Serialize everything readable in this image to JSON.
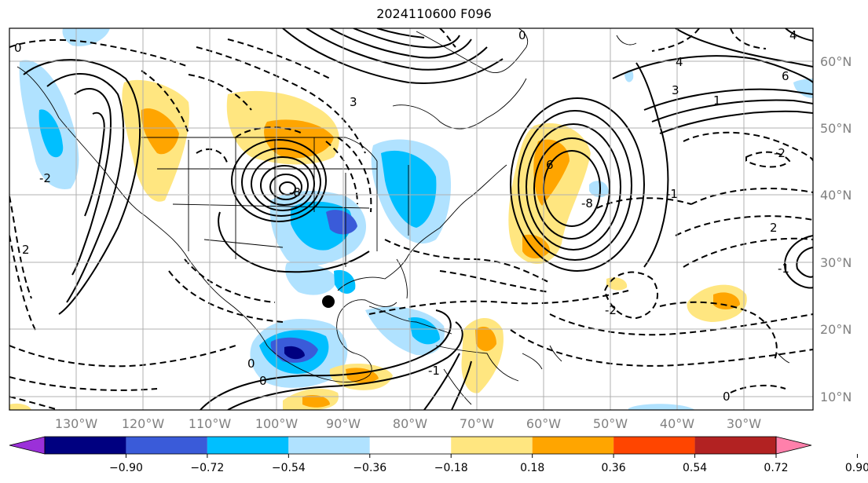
{
  "title": "2024110600 F096",
  "map": {
    "type": "weather-map",
    "grid": true,
    "lon_labels": [
      "130°W",
      "120°W",
      "110°W",
      "100°W",
      "90°W",
      "80°W",
      "70°W",
      "60°W",
      "50°W",
      "40°W",
      "30°W"
    ],
    "lon_values": [
      -130,
      -120,
      -110,
      -100,
      -90,
      -80,
      -70,
      -60,
      -50,
      -40,
      -30
    ],
    "lat_labels": [
      "60°N",
      "50°N",
      "40°N",
      "30°N",
      "20°N",
      "10°N"
    ],
    "lat_values": [
      60,
      50,
      40,
      30,
      20,
      10
    ],
    "lon_range": [
      -138,
      -18
    ],
    "lat_range": [
      8,
      65
    ],
    "contour_labels": [
      "0",
      "0",
      "2",
      "2",
      "3",
      "3",
      "4",
      "4",
      "6",
      "-8",
      "-8",
      "1",
      "-1",
      "-2",
      "-2",
      "-1",
      "-1",
      "0",
      "0",
      "0",
      "-2",
      "6"
    ]
  },
  "colorbar": {
    "ticks": [
      "−0.90",
      "−0.72",
      "−0.54",
      "−0.36",
      "−0.18",
      "0.18",
      "0.36",
      "0.54",
      "0.72",
      "0.90"
    ],
    "colors": [
      "#9b30d9",
      "#000080",
      "#3a5bd9",
      "#00bfff",
      "#b0e2ff",
      "#ffffff",
      "#ffe680",
      "#ffa500",
      "#ff4500",
      "#b22222",
      "#ff80ab"
    ],
    "extend": "both"
  }
}
